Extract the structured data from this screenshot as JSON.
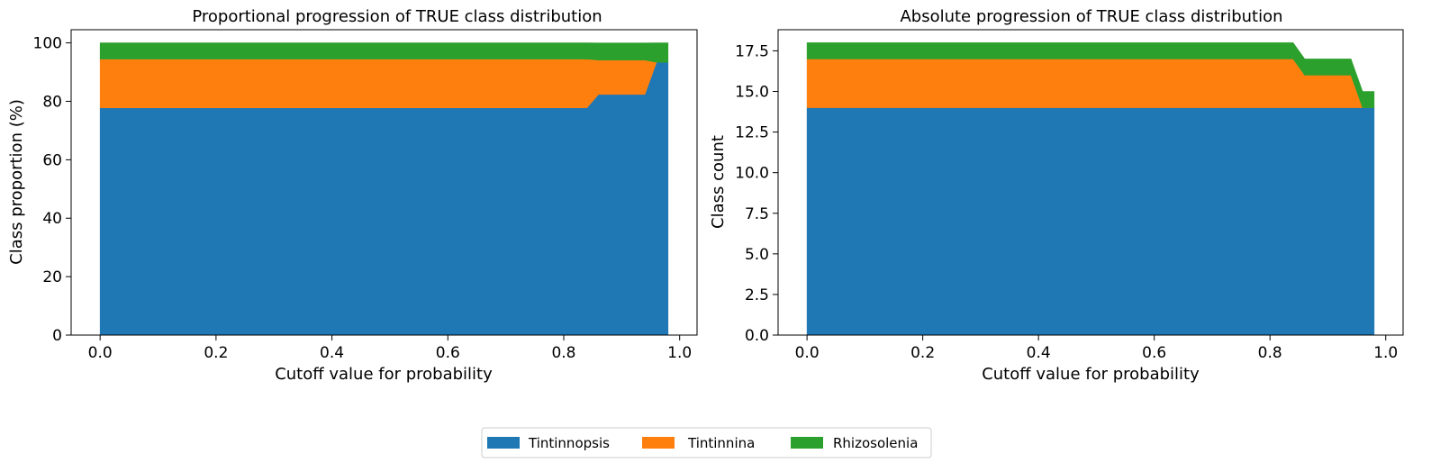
{
  "chart_data": [
    {
      "type": "area",
      "stacked": true,
      "title": "Proportional progression of TRUE class distribution",
      "xlabel": "Cutoff value for probability",
      "ylabel": "Class proportion (%)",
      "xlim": [
        -0.05,
        1.03
      ],
      "ylim": [
        0,
        104.5
      ],
      "xticks": [
        0.0,
        0.2,
        0.4,
        0.6,
        0.8,
        1.0
      ],
      "xtick_labels": [
        "0.0",
        "0.2",
        "0.4",
        "0.6",
        "0.8",
        "1.0"
      ],
      "yticks": [
        0,
        20,
        40,
        60,
        80,
        100
      ],
      "ytick_labels": [
        "0",
        "20",
        "40",
        "60",
        "80",
        "100"
      ],
      "grid": false,
      "x": [
        0.0,
        0.84,
        0.86,
        0.94,
        0.96,
        0.98
      ],
      "series": [
        {
          "name": "Tintinnopsis",
          "color": "#1f77b4",
          "values": [
            77.78,
            77.78,
            82.35,
            82.35,
            93.33,
            93.33
          ]
        },
        {
          "name": "Tintinnina",
          "color": "#ff7f0e",
          "values": [
            16.67,
            16.67,
            11.76,
            11.76,
            0.0,
            0.0
          ]
        },
        {
          "name": "Rhizosolenia",
          "color": "#2ca02c",
          "values": [
            5.56,
            5.56,
            5.88,
            5.88,
            6.67,
            6.67
          ]
        }
      ]
    },
    {
      "type": "area",
      "stacked": true,
      "title": "Absolute progression of TRUE class distribution",
      "xlabel": "Cutoff value for probability",
      "ylabel": "Class count",
      "xlim": [
        -0.05,
        1.03
      ],
      "ylim": [
        0,
        18.8
      ],
      "xticks": [
        0.0,
        0.2,
        0.4,
        0.6,
        0.8,
        1.0
      ],
      "xtick_labels": [
        "0.0",
        "0.2",
        "0.4",
        "0.6",
        "0.8",
        "1.0"
      ],
      "yticks": [
        0,
        2.5,
        5,
        7.5,
        10,
        12.5,
        15,
        17.5
      ],
      "ytick_labels": [
        "0.0",
        "2.5",
        "5.0",
        "7.5",
        "10.0",
        "12.5",
        "15.0",
        "17.5"
      ],
      "grid": false,
      "x": [
        0.0,
        0.84,
        0.86,
        0.94,
        0.96,
        0.98
      ],
      "series": [
        {
          "name": "Tintinnopsis",
          "color": "#1f77b4",
          "values": [
            14,
            14,
            14,
            14,
            14,
            14
          ]
        },
        {
          "name": "Tintinnina",
          "color": "#ff7f0e",
          "values": [
            3,
            3,
            2,
            2,
            0,
            0
          ]
        },
        {
          "name": "Rhizosolenia",
          "color": "#2ca02c",
          "values": [
            1,
            1,
            1,
            1,
            1,
            1
          ]
        }
      ]
    }
  ],
  "legend": {
    "placement": "bottom-center",
    "entries": [
      {
        "label": "Tintinnopsis",
        "color": "#1f77b4"
      },
      {
        "label": "Tintinnina",
        "color": "#ff7f0e"
      },
      {
        "label": "Rhizosolenia",
        "color": "#2ca02c"
      }
    ]
  }
}
